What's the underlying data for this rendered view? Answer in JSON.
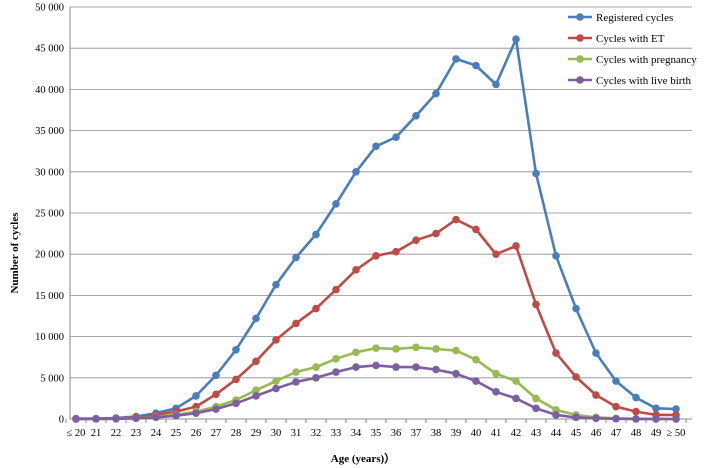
{
  "chart_data": {
    "type": "line",
    "title": "",
    "xlabel": "Age (years)）",
    "ylabel": "Number of cycles",
    "ylim": [
      0,
      50000
    ],
    "ytick_step": 5000,
    "ytick_labels": [
      "0",
      "5 000",
      "10 000",
      "15 000",
      "20 000",
      "25 000",
      "30 000",
      "35 000",
      "40 000",
      "45 000",
      "50 000"
    ],
    "grid": true,
    "legend_position": "top-right",
    "categories": [
      "≤ 20",
      "21",
      "22",
      "23",
      "24",
      "25",
      "26",
      "27",
      "28",
      "29",
      "30",
      "31",
      "32",
      "33",
      "34",
      "35",
      "36",
      "37",
      "38",
      "39",
      "40",
      "41",
      "42",
      "43",
      "44",
      "45",
      "46",
      "47",
      "48",
      "49",
      "≥ 50"
    ],
    "series": [
      {
        "name": "Registered cycles",
        "color": "#4a7ebb",
        "values": [
          50,
          60,
          120,
          300,
          700,
          1300,
          2800,
          5300,
          8400,
          12200,
          16300,
          19600,
          22400,
          26100,
          30000,
          33100,
          34200,
          36800,
          39500,
          43700,
          42900,
          40600,
          46100,
          29800,
          19800,
          13400,
          8000,
          4600,
          2600,
          1300,
          1200
        ]
      },
      {
        "name": "Cycles with ET",
        "color": "#be4b48",
        "values": [
          20,
          40,
          80,
          200,
          500,
          900,
          1500,
          3000,
          4800,
          7000,
          9600,
          11600,
          13400,
          15700,
          18100,
          19800,
          20300,
          21700,
          22500,
          24200,
          23000,
          20000,
          21000,
          13900,
          8000,
          5100,
          2900,
          1500,
          900,
          500,
          500
        ]
      },
      {
        "name": "Cycles with pregnancy",
        "color": "#98b954",
        "values": [
          10,
          20,
          40,
          100,
          250,
          500,
          900,
          1500,
          2300,
          3500,
          4600,
          5700,
          6300,
          7300,
          8100,
          8600,
          8500,
          8700,
          8500,
          8300,
          7200,
          5500,
          4600,
          2500,
          1100,
          500,
          200,
          80,
          30,
          10,
          10
        ]
      },
      {
        "name": "Cycles with live birth",
        "color": "#7d5fa0",
        "values": [
          10,
          15,
          30,
          80,
          200,
          400,
          700,
          1200,
          1900,
          2800,
          3700,
          4500,
          5000,
          5700,
          6300,
          6500,
          6300,
          6300,
          6000,
          5500,
          4600,
          3300,
          2500,
          1300,
          500,
          200,
          80,
          30,
          10,
          5,
          5
        ]
      }
    ]
  }
}
